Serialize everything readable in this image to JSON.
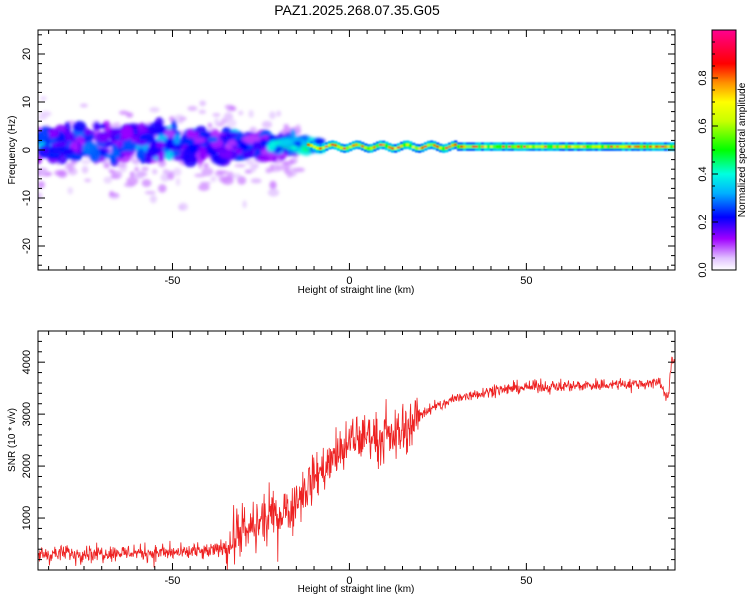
{
  "title": "PAZ1.2025.268.07.35.G05",
  "colors": {
    "snr_line": "#ee2222",
    "axis": "#000000",
    "background": "#ffffff"
  },
  "chart_data": [
    {
      "type": "heatmap",
      "name": "spectrogram",
      "xlabel": "Height of straight line (km)",
      "ylabel": "Frequency (Hz)",
      "xlim": [
        -88,
        92
      ],
      "ylim": [
        -25,
        25
      ],
      "xticks": [
        -50,
        0,
        50
      ],
      "yticks": [
        -20,
        -10,
        0,
        10,
        20
      ],
      "colorbar": {
        "label": "Normalized spectral amplitude",
        "range": [
          0,
          1
        ],
        "ticks": [
          "0.0",
          "0.2",
          "0.4",
          "0.6",
          "0.8"
        ],
        "tick_values": [
          0.0,
          0.2,
          0.4,
          0.6,
          0.8
        ],
        "colormap": [
          "#ffffff",
          "#a000ff",
          "#0000ff",
          "#00e5ff",
          "#00ff00",
          "#ffff00",
          "#ff8000",
          "#ff0000",
          "#ff00a0"
        ]
      },
      "description_of_content": "Scattered low-amplitude energy between -10 and +10 Hz for heights below about -15 km; a narrow high-amplitude band near 0 to +1 Hz for heights above about -15 km"
    },
    {
      "type": "line",
      "name": "snr",
      "xlabel": "Height of straight line (km)",
      "ylabel": "SNR (10 * v/v)",
      "xlim": [
        -88,
        92
      ],
      "ylim": [
        0,
        4600
      ],
      "xticks": [
        -50,
        0,
        50
      ],
      "yticks": [
        1000,
        2000,
        3000,
        4000
      ],
      "series": [
        {
          "name": "SNR",
          "x": [
            -88,
            -80,
            -70,
            -60,
            -50,
            -40,
            -35,
            -30,
            -25,
            -20,
            -15,
            -10,
            -5,
            0,
            5,
            10,
            15,
            20,
            25,
            30,
            35,
            40,
            50,
            60,
            70,
            80,
            88,
            90,
            91
          ],
          "y": [
            300,
            320,
            330,
            340,
            330,
            350,
            450,
            700,
            900,
            1100,
            1300,
            1800,
            2100,
            2400,
            2600,
            2500,
            2700,
            3000,
            3150,
            3300,
            3380,
            3450,
            3520,
            3540,
            3560,
            3580,
            3600,
            3300,
            4000
          ]
        }
      ]
    }
  ]
}
